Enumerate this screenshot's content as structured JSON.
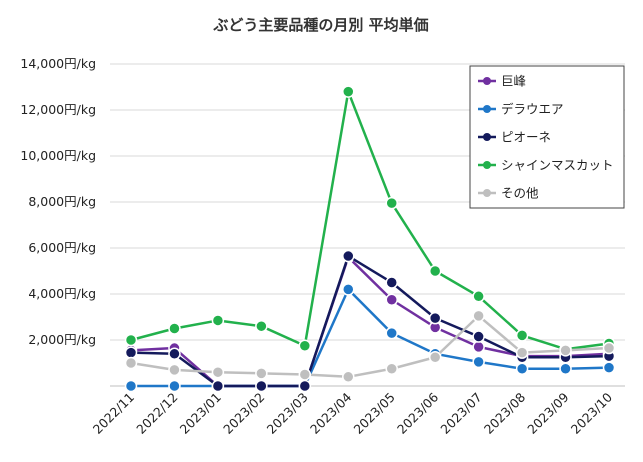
{
  "chart_data": {
    "type": "line",
    "title": "ぶどう主要品種の月別 平均単価",
    "xlabel": "",
    "ylabel": "",
    "categories": [
      "2022/11",
      "2022/12",
      "2023/01",
      "2023/02",
      "2023/03",
      "2023/04",
      "2023/05",
      "2023/06",
      "2023/07",
      "2023/08",
      "2023/09",
      "2023/10"
    ],
    "ylim": [
      0,
      14000
    ],
    "yticks": [
      {
        "value": 2000,
        "label": "2,000円/kg"
      },
      {
        "value": 4000,
        "label": "4,000円/kg"
      },
      {
        "value": 6000,
        "label": "6,000円/kg"
      },
      {
        "value": 8000,
        "label": "8,000円/kg"
      },
      {
        "value": 10000,
        "label": "10,000円/kg"
      },
      {
        "value": 12000,
        "label": "12,000円/kg"
      },
      {
        "value": 14000,
        "label": "14,000円/kg"
      }
    ],
    "grid": true,
    "legend_position": "top-right",
    "series": [
      {
        "name": "巨峰",
        "color": "#7030a0",
        "values": [
          1550,
          1650,
          0,
          0,
          0,
          5600,
          3750,
          2550,
          1700,
          1300,
          1300,
          1400
        ]
      },
      {
        "name": "デラウエア",
        "color": "#1f77c8",
        "values": [
          0,
          0,
          0,
          0,
          0,
          4200,
          2300,
          1400,
          1050,
          750,
          750,
          800
        ]
      },
      {
        "name": "ピオーネ",
        "color": "#141a5c",
        "values": [
          1450,
          1400,
          0,
          0,
          0,
          5650,
          4500,
          2950,
          2150,
          1250,
          1250,
          1300
        ]
      },
      {
        "name": "シャインマスカット",
        "color": "#22b14c",
        "values": [
          2000,
          2500,
          2850,
          2600,
          1750,
          12800,
          7950,
          5000,
          3900,
          2200,
          1600,
          1850
        ]
      },
      {
        "name": "その他",
        "color": "#bfbfbf",
        "values": [
          1000,
          700,
          600,
          550,
          500,
          400,
          750,
          1250,
          3050,
          1450,
          1550,
          1650
        ]
      }
    ]
  }
}
